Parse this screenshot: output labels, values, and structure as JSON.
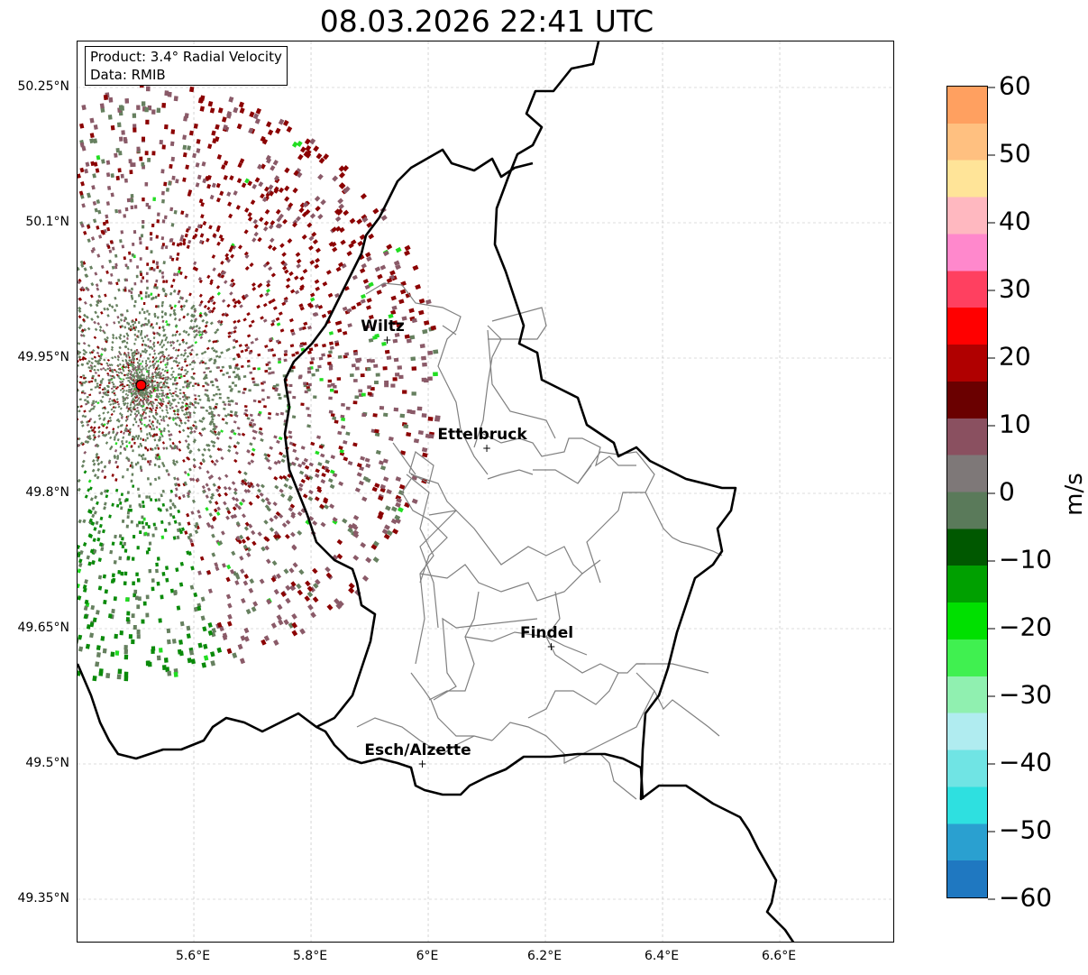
{
  "title": "08.03.2026 22:41 UTC",
  "info": {
    "product": "Product: 3.4° Radial Velocity",
    "data": "Data: RMIB"
  },
  "lat_labels": [
    "50.25°N",
    "50.1°N",
    "49.95°N",
    "49.8°N",
    "49.65°N",
    "49.5°N",
    "49.35°N"
  ],
  "lon_labels": [
    "5.6°E",
    "5.8°E",
    "6°E",
    "6.2°E",
    "6.4°E",
    "6.6°E"
  ],
  "cities": [
    {
      "name": "Wiltz",
      "lon": 5.93,
      "lat": 49.97
    },
    {
      "name": "Ettelbruck",
      "lon": 6.1,
      "lat": 49.85
    },
    {
      "name": "Findel",
      "lon": 6.21,
      "lat": 49.63
    },
    {
      "name": "Esch/Alzette",
      "lon": 5.99,
      "lat": 49.5
    }
  ],
  "radar_site": {
    "lon": 5.51,
    "lat": 49.92,
    "color": "#ff0000"
  },
  "colorbar": {
    "label": "m/s",
    "range": [
      -60,
      60
    ],
    "ticks": [
      "60",
      "50",
      "40",
      "30",
      "20",
      "10",
      "0",
      "−10",
      "−20",
      "−30",
      "−40",
      "−50",
      "−60"
    ],
    "colors": [
      "#1f78c1",
      "#2aa0d0",
      "#2ee0e0",
      "#70e4e4",
      "#b0ecf0",
      "#90f0b0",
      "#40f050",
      "#00e000",
      "#00a000",
      "#005800",
      "#5a7a5a",
      "#7e7878",
      "#8a5060",
      "#6a0000",
      "#b00000",
      "#ff0000",
      "#ff4060",
      "#ff88cc",
      "#ffb8c0",
      "#ffe498",
      "#ffc080",
      "#ffa060"
    ]
  }
}
